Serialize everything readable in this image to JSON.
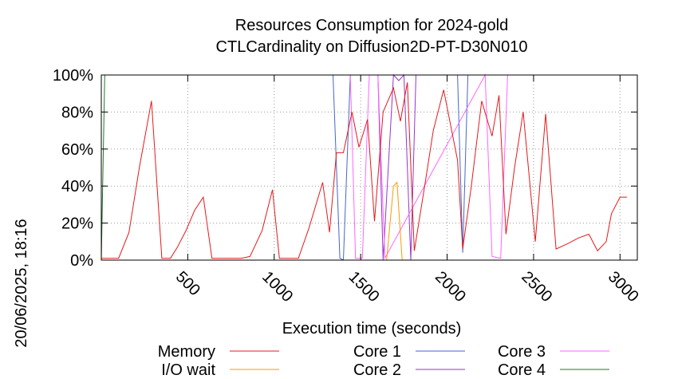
{
  "chart_data": {
    "type": "line",
    "title_line1": "Resources Consumption for 2024-gold",
    "title_line2": "CTLCardinality on Diffusion2D-PT-D30N010",
    "xlabel": "Execution time (seconds)",
    "ylabel": "",
    "side_label": "20/06/2025, 18:16",
    "xlim": [
      0,
      3100
    ],
    "ylim": [
      0,
      100
    ],
    "x_ticks": [
      500,
      1000,
      1500,
      2000,
      2500,
      3000
    ],
    "x_tick_labels": [
      "500",
      "1000",
      "1500",
      "2000",
      "2500",
      "3000"
    ],
    "y_ticks": [
      0,
      20,
      40,
      60,
      80,
      100
    ],
    "y_tick_labels": [
      "0%",
      "20%",
      "40%",
      "60%",
      "80%",
      "100%"
    ],
    "grid": true,
    "legend_placement": "bottom",
    "series": [
      {
        "name": "Memory",
        "color": "#e41a1c",
        "x": [
          0,
          20,
          100,
          160,
          220,
          290,
          350,
          400,
          440,
          490,
          540,
          590,
          640,
          700,
          760,
          810,
          860,
          930,
          990,
          1030,
          1090,
          1140,
          1200,
          1280,
          1320,
          1360,
          1400,
          1450,
          1490,
          1540,
          1580,
          1630,
          1690,
          1730,
          1770,
          1810,
          1870,
          1920,
          1980,
          2060,
          2090,
          2140,
          2200,
          2260,
          2300,
          2340,
          2390,
          2440,
          2510,
          2570,
          2630,
          2700,
          2760,
          2820,
          2870,
          2920,
          2950,
          3000,
          3040
        ],
        "y": [
          1,
          1,
          1,
          15,
          50,
          86,
          1,
          1,
          7,
          16,
          27,
          34,
          1,
          1,
          1,
          1,
          2,
          16,
          38,
          1,
          1,
          1,
          17,
          42,
          15,
          58,
          58,
          80,
          61,
          76,
          21,
          80,
          93,
          75,
          96,
          5,
          40,
          70,
          92,
          54,
          6,
          40,
          86,
          67,
          89,
          14,
          50,
          80,
          10,
          79,
          6,
          9,
          12,
          14,
          5,
          10,
          25,
          34,
          34
        ]
      },
      {
        "name": "I/O wait",
        "color": "#ff9900",
        "x": [
          0,
          1650,
          1690,
          1710,
          1740,
          3100
        ],
        "y": [
          0,
          0,
          40,
          42,
          0,
          0
        ]
      },
      {
        "name": "Core 1",
        "color": "#4466cc",
        "x": [
          0,
          1340,
          1380,
          1400,
          1440,
          2060,
          2090,
          2120,
          3100
        ],
        "y": [
          100,
          100,
          1,
          0,
          100,
          100,
          4,
          100,
          100
        ]
      },
      {
        "name": "Core 2",
        "color": "#9933cc",
        "x": [
          0,
          1600,
          1630,
          1690,
          1720,
          1750,
          1790,
          1820,
          3100
        ],
        "y": [
          100,
          100,
          0,
          100,
          97,
          100,
          0,
          100,
          100
        ]
      },
      {
        "name": "Core 3",
        "color": "#ff66ff",
        "x": [
          0,
          1440,
          1470,
          1510,
          1550,
          1600,
          1640,
          2220,
          2260,
          2310,
          2350,
          3100
        ],
        "y": [
          100,
          100,
          1,
          1,
          100,
          100,
          1,
          100,
          2,
          1,
          100,
          100
        ]
      },
      {
        "name": "Core 4",
        "color": "#227722",
        "x": [
          0,
          20,
          3100
        ],
        "y": [
          0,
          100,
          100
        ]
      }
    ]
  }
}
